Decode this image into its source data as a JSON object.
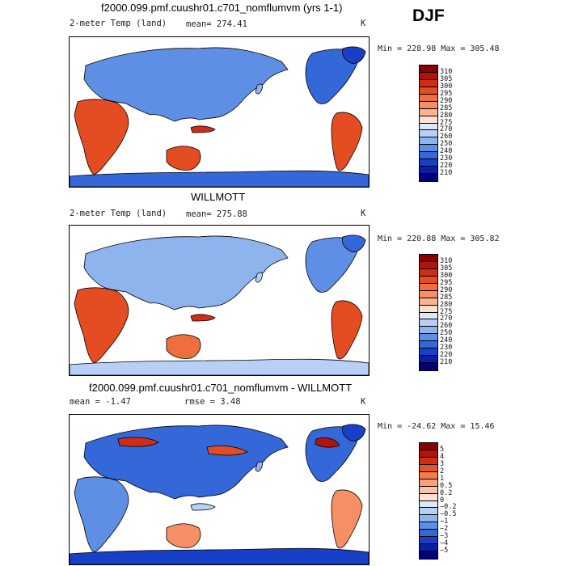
{
  "season": "DJF",
  "panels": [
    {
      "title": "f2000.099.pmf.cuushr01.c701_nomflumvm (yrs 1-1)",
      "left_label": "2-meter Temp (land)",
      "mid_label": "mean= 274.41",
      "unit": "K",
      "minmax": "Min = 228.98 Max = 305.48",
      "colorbar": {
        "labels": [
          "310",
          "305",
          "300",
          "295",
          "290",
          "285",
          "280",
          "275",
          "270",
          "260",
          "250",
          "240",
          "230",
          "220",
          "210"
        ],
        "colors": [
          "#8a0000",
          "#b0150b",
          "#cf2d14",
          "#e44c22",
          "#f06d3e",
          "#f78f64",
          "#fbb396",
          "#fde0cf",
          "#dce9fa",
          "#b8d0f5",
          "#8eb4ee",
          "#5e8fe4",
          "#3467d8",
          "#1740c6",
          "#0a1fa8",
          "#00007a"
        ]
      }
    },
    {
      "title": "WILLMOTT",
      "left_label": "2-meter Temp (land)",
      "mid_label": "mean= 275.88",
      "unit": "K",
      "minmax": "Min = 220.88 Max = 305.82",
      "colorbar": {
        "labels": [
          "310",
          "305",
          "300",
          "295",
          "290",
          "285",
          "280",
          "275",
          "270",
          "260",
          "250",
          "240",
          "230",
          "220",
          "210"
        ],
        "colors": [
          "#8a0000",
          "#b0150b",
          "#cf2d14",
          "#e44c22",
          "#f06d3e",
          "#f78f64",
          "#fbb396",
          "#fde0cf",
          "#dce9fa",
          "#b8d0f5",
          "#8eb4ee",
          "#5e8fe4",
          "#3467d8",
          "#1740c6",
          "#0a1fa8",
          "#00007a"
        ]
      }
    },
    {
      "title": "f2000.099.pmf.cuushr01.c701_nomflumvm - WILLMOTT",
      "left_label": "mean =   -1.47",
      "mid_label": "rmse =    3.48",
      "unit": "K",
      "minmax": "Min = -24.62 Max =  15.46",
      "colorbar": {
        "labels": [
          "5",
          "4",
          "3",
          "2",
          "1",
          "0.5",
          "0.2",
          "0",
          "−0.2",
          "−0.5",
          "−1",
          "−2",
          "−3",
          "−4",
          "−5"
        ],
        "colors": [
          "#8a0000",
          "#b0150b",
          "#d32c14",
          "#ea5228",
          "#f57b4e",
          "#f9a07c",
          "#fcc3a8",
          "#fee3d4",
          "#dce9fa",
          "#b8d0f5",
          "#8eb4ee",
          "#5e8fe4",
          "#3467d8",
          "#1740c6",
          "#0a1fa8",
          "#00007a"
        ]
      }
    }
  ]
}
